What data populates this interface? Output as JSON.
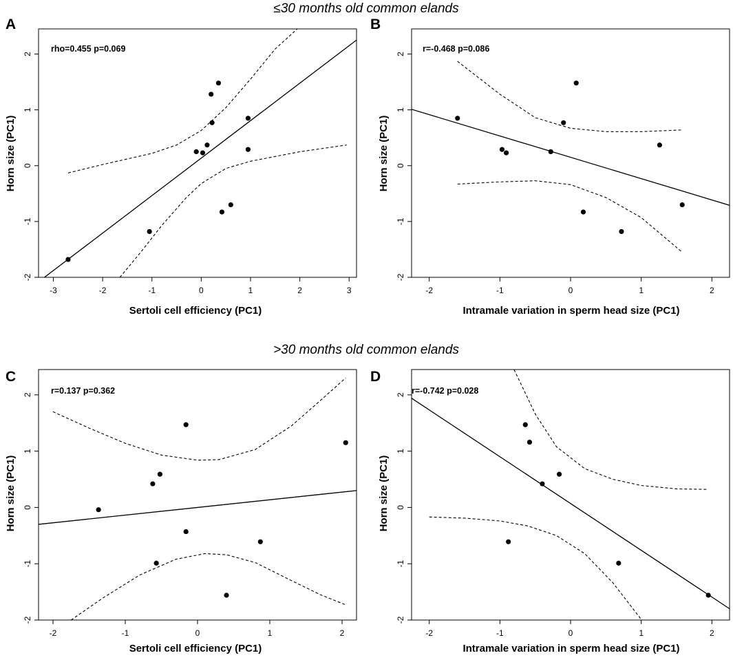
{
  "figure": {
    "section_titles": [
      "≤30 months old common elands",
      ">30 months old common elands"
    ]
  },
  "chart_data": [
    {
      "type": "scatter",
      "panel": "A",
      "stat": "rho=0.455 p=0.069",
      "xlabel": "Sertoli cell efficiency (PC1)",
      "ylabel": "Horn size (PC1)",
      "xlim": [
        -3.3,
        3.15
      ],
      "ylim": [
        -2,
        2.45
      ],
      "xticks": [
        -3,
        -2,
        -1,
        0,
        1,
        2,
        3
      ],
      "yticks": [
        -2,
        -1,
        0,
        1,
        2
      ],
      "points": [
        {
          "x": -2.7,
          "y": -1.68
        },
        {
          "x": -1.05,
          "y": -1.18
        },
        {
          "x": -0.1,
          "y": 0.25
        },
        {
          "x": 0.03,
          "y": 0.23
        },
        {
          "x": 0.12,
          "y": 0.37
        },
        {
          "x": 0.2,
          "y": 1.28
        },
        {
          "x": 0.22,
          "y": 0.77
        },
        {
          "x": 0.35,
          "y": 1.48
        },
        {
          "x": 0.42,
          "y": -0.83
        },
        {
          "x": 0.6,
          "y": -0.7
        },
        {
          "x": 0.95,
          "y": 0.85
        },
        {
          "x": 0.95,
          "y": 0.29
        }
      ],
      "fit": {
        "x": [
          -3.3,
          3.15
        ],
        "y": [
          -2.08,
          2.25
        ]
      },
      "ci_upper": {
        "x": [
          -2.7,
          -2.0,
          -1.0,
          -0.5,
          0.0,
          0.5,
          1.0,
          1.5,
          1.95
        ],
        "y": [
          -0.13,
          0.02,
          0.22,
          0.37,
          0.63,
          1.04,
          1.55,
          2.09,
          2.45
        ]
      },
      "ci_lower": {
        "x": [
          -1.65,
          -1.2,
          -0.8,
          -0.3,
          0.0,
          0.5,
          1.0,
          2.0,
          2.95
        ],
        "y": [
          -2.0,
          -1.52,
          -1.07,
          -0.57,
          -0.32,
          -0.05,
          0.08,
          0.25,
          0.37
        ]
      }
    },
    {
      "type": "scatter",
      "panel": "B",
      "stat": "r=-0.468 p=0.086",
      "xlabel": "Intramale variation in sperm head size (PC1)",
      "ylabel": "Horn size (PC1)",
      "xlim": [
        -2.25,
        2.25
      ],
      "ylim": [
        -2,
        2.45
      ],
      "xticks": [
        -2,
        -1,
        0,
        1,
        2
      ],
      "yticks": [
        -2,
        -1,
        0,
        1,
        2
      ],
      "points": [
        {
          "x": -1.6,
          "y": 0.85
        },
        {
          "x": -0.97,
          "y": 0.29
        },
        {
          "x": -0.91,
          "y": 0.23
        },
        {
          "x": -0.28,
          "y": 0.25
        },
        {
          "x": -0.1,
          "y": 0.77
        },
        {
          "x": 0.08,
          "y": 1.48
        },
        {
          "x": 0.18,
          "y": -0.83
        },
        {
          "x": 0.72,
          "y": -1.18
        },
        {
          "x": 1.26,
          "y": 0.37
        },
        {
          "x": 1.58,
          "y": -0.7
        }
      ],
      "fit": {
        "x": [
          -2.25,
          2.25
        ],
        "y": [
          1.01,
          -0.71
        ]
      },
      "ci_upper": {
        "x": [
          -1.6,
          -1.0,
          -0.5,
          0.0,
          0.5,
          1.0,
          1.58
        ],
        "y": [
          1.87,
          1.28,
          0.86,
          0.67,
          0.61,
          0.61,
          0.64
        ]
      },
      "ci_lower": {
        "x": [
          -1.6,
          -1.0,
          -0.5,
          0.0,
          0.5,
          1.0,
          1.58
        ],
        "y": [
          -0.33,
          -0.29,
          -0.27,
          -0.34,
          -0.57,
          -0.93,
          -1.55
        ]
      }
    },
    {
      "type": "scatter",
      "panel": "C",
      "stat": "r=0.137 p=0.362",
      "xlabel": "Sertoli cell efficiency (PC1)",
      "ylabel": "Horn size (PC1)",
      "xlim": [
        -2.2,
        2.2
      ],
      "ylim": [
        -2,
        2.45
      ],
      "xticks": [
        -2,
        -1,
        0,
        1,
        2
      ],
      "yticks": [
        -2,
        -1,
        0,
        1,
        2
      ],
      "points": [
        {
          "x": -1.37,
          "y": -0.04
        },
        {
          "x": -0.62,
          "y": 0.42
        },
        {
          "x": -0.52,
          "y": 0.59
        },
        {
          "x": -0.57,
          "y": -0.99
        },
        {
          "x": -0.16,
          "y": 1.47
        },
        {
          "x": -0.16,
          "y": -0.43
        },
        {
          "x": 0.4,
          "y": -1.56
        },
        {
          "x": 0.87,
          "y": -0.61
        },
        {
          "x": 2.05,
          "y": 1.15
        }
      ],
      "fit": {
        "x": [
          -2.2,
          2.2
        ],
        "y": [
          -0.3,
          0.3
        ]
      },
      "ci_upper": {
        "x": [
          -2.0,
          -1.5,
          -1.0,
          -0.5,
          0.0,
          0.3,
          0.8,
          1.3,
          1.7,
          2.05
        ],
        "y": [
          1.7,
          1.41,
          1.14,
          0.93,
          0.84,
          0.85,
          1.03,
          1.45,
          1.9,
          2.3
        ]
      },
      "ci_lower": {
        "x": [
          -1.75,
          -1.3,
          -0.8,
          -0.3,
          0.1,
          0.4,
          0.8,
          1.3,
          1.7,
          2.05
        ],
        "y": [
          -2.0,
          -1.6,
          -1.2,
          -0.92,
          -0.82,
          -0.84,
          -0.98,
          -1.3,
          -1.55,
          -1.73
        ]
      }
    },
    {
      "type": "scatter",
      "panel": "D",
      "stat": "r=-0.742 p=0.028",
      "xlabel": "Intramale variation in sperm head size (PC1)",
      "ylabel": "Horn size (PC1)",
      "xlim": [
        -2.25,
        2.25
      ],
      "ylim": [
        -2,
        2.45
      ],
      "xticks": [
        -2,
        -1,
        0,
        1,
        2
      ],
      "yticks": [
        -2,
        -1,
        0,
        1,
        2
      ],
      "points": [
        {
          "x": -0.88,
          "y": -0.61
        },
        {
          "x": -0.64,
          "y": 1.47
        },
        {
          "x": -0.58,
          "y": 1.16
        },
        {
          "x": -0.4,
          "y": 0.42
        },
        {
          "x": -0.16,
          "y": 0.59
        },
        {
          "x": 0.68,
          "y": -0.99
        },
        {
          "x": 1.95,
          "y": -1.56
        }
      ],
      "fit": {
        "x": [
          -2.25,
          2.25
        ],
        "y": [
          1.94,
          -1.8
        ]
      },
      "ci_upper": {
        "x": [
          -0.8,
          -0.5,
          -0.2,
          0.2,
          0.6,
          1.0,
          1.5,
          1.95
        ],
        "y": [
          2.45,
          1.66,
          1.08,
          0.69,
          0.5,
          0.39,
          0.33,
          0.32
        ]
      },
      "ci_lower": {
        "x": [
          -2.0,
          -1.5,
          -1.0,
          -0.6,
          -0.2,
          0.2,
          0.6,
          1.0
        ],
        "y": [
          -0.17,
          -0.19,
          -0.24,
          -0.33,
          -0.5,
          -0.82,
          -1.34,
          -1.99
        ]
      }
    }
  ]
}
